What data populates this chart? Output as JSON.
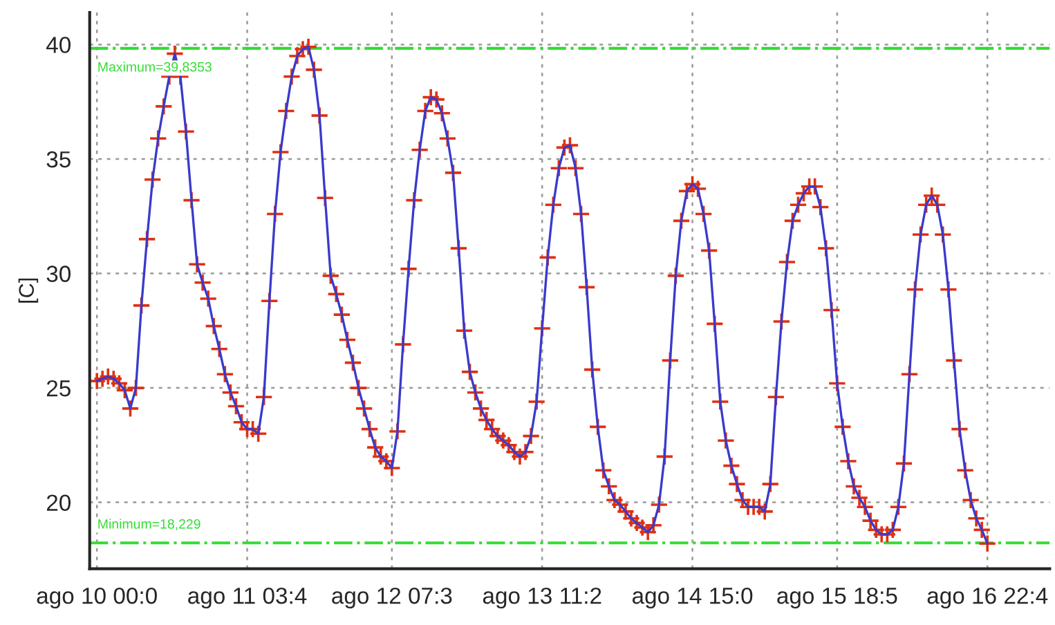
{
  "chart_data": {
    "type": "line",
    "ylabel": "[C]",
    "categories": [
      "ago 10 00:0",
      null,
      null,
      null,
      null,
      null,
      null,
      null,
      null,
      null,
      null,
      null,
      null,
      null,
      null,
      null,
      null,
      null,
      null,
      null,
      null,
      null,
      null,
      null,
      null,
      null,
      null,
      "ago 11 03:4",
      null,
      null,
      null,
      null,
      null,
      null,
      null,
      null,
      null,
      null,
      null,
      null,
      null,
      null,
      null,
      null,
      null,
      null,
      null,
      null,
      null,
      null,
      null,
      null,
      null,
      "ago 12 07:3",
      null,
      null,
      null,
      null,
      null,
      null,
      null,
      null,
      null,
      null,
      null,
      null,
      null,
      null,
      null,
      null,
      null,
      null,
      null,
      null,
      null,
      null,
      null,
      null,
      null,
      null,
      "ago 13 11:2",
      null,
      null,
      null,
      null,
      null,
      null,
      null,
      null,
      null,
      null,
      null,
      null,
      null,
      null,
      null,
      null,
      null,
      null,
      null,
      null,
      null,
      null,
      null,
      null,
      null,
      null,
      "ago 14 15:0",
      null,
      null,
      null,
      null,
      null,
      null,
      null,
      null,
      null,
      null,
      null,
      null,
      null,
      null,
      null,
      null,
      null,
      null,
      null,
      null,
      null,
      null,
      null,
      null,
      null,
      "ago 15 18:5",
      null,
      null,
      null,
      null,
      null,
      null,
      null,
      null,
      null,
      null,
      null,
      null,
      null,
      null,
      null,
      null,
      null,
      null,
      null,
      null,
      null,
      null,
      null,
      null,
      null,
      null,
      "ago 16 22:4"
    ],
    "ylim": [
      17.1,
      41.4
    ],
    "yticks": [
      20,
      25,
      30,
      35,
      40
    ],
    "grid": true,
    "marker": "cross",
    "line_style": "solid",
    "ref_lines": [
      {
        "axis": "y",
        "value": 39.8353,
        "label": "Maximum=39,8353",
        "color": "#33dd33",
        "line_style": "dashdot"
      },
      {
        "axis": "y",
        "value": 18.229,
        "label": "Minimum=18,229",
        "color": "#33dd33",
        "line_style": "dashdot"
      }
    ],
    "series": [
      {
        "color": "#3a3acc",
        "colors": [
          "#e03010",
          "#e03010",
          "#e03010",
          "#e03010",
          "#e03010",
          "#e03010",
          "#e03010",
          "#e03010",
          "#e03010",
          "#e03010",
          "#e03010",
          "#e03010",
          "#e03010",
          "#e03010",
          "#e03010",
          "#e03010",
          "#e03010",
          "#e03010",
          "#e03010",
          "#e03010",
          "#e03010",
          "#e03010",
          "#e03010",
          "#e03010",
          "#e03010",
          "#e03010",
          "#e03010",
          "#e03010",
          "#e03010",
          "#e03010",
          "#e03010",
          "#e03010",
          "#e03010",
          "#e03010",
          "#e03010",
          "#e03010",
          "#e03010",
          "#e03010",
          "#e03010",
          "#e03010",
          "#e03010",
          "#e03010",
          "#e03010",
          "#e03010",
          "#e03010",
          "#e03010",
          "#e03010",
          "#e03010",
          "#e03010",
          "#e03010",
          "#e03010",
          "#e03010",
          "#e03010",
          "#e03010",
          "#e03010",
          "#e03010",
          "#e03010",
          "#e03010",
          "#e03010",
          "#e03010",
          "#e03010",
          "#e03010",
          "#e03010",
          "#e03010",
          "#e03010",
          "#e03010",
          "#e03010",
          "#e03010",
          "#e03010",
          "#e03010",
          "#e03010",
          "#e03010",
          "#e03010",
          "#e03010",
          "#e03010",
          "#e03010",
          "#e03010",
          "#e03010",
          "#e03010",
          "#e03010",
          "#e03010",
          "#e03010",
          "#e03010",
          "#e03010",
          "#e03010",
          "#e03010",
          "#e03010",
          "#e03010",
          "#e03010",
          "#e03010",
          "#e03010",
          "#e03010",
          "#e03010",
          "#e03010",
          "#e03010",
          "#e03010",
          "#e03010",
          "#e03010",
          "#e03010",
          "#e03010",
          "#e03010",
          "#e03010",
          "#e03010",
          "#e03010",
          "#e03010",
          "#e03010",
          "#e03010",
          "#e03010",
          "#e03010",
          "#e03010",
          "#e03010",
          "#e03010",
          "#e03010",
          "#e03010",
          "#e03010",
          "#e03010",
          "#e03010",
          "#e03010",
          "#e03010",
          "#e03010",
          "#e03010",
          "#e03010",
          "#e03010",
          "#e03010",
          "#e03010",
          "#e03010",
          "#e03010",
          "#e03010",
          "#e03010",
          "#e03010",
          "#e03010",
          "#e03010",
          "#e03010",
          "#e03010",
          "#e03010",
          "#e03010",
          "#e03010",
          "#e03010",
          "#e03010",
          "#e03010",
          "#e03010",
          "#e03010",
          "#e03010",
          "#e03010",
          "#e03010",
          "#e03010",
          "#e03010",
          "#e03010",
          "#e03010",
          "#e03010",
          "#e03010",
          "#e03010",
          "#e03010",
          "#e03010",
          "#e03010",
          "#e03010",
          "#e03010",
          "#e03010",
          "#e03010",
          "#e03010",
          "#e03010"
        ],
        "values": [
          25.3,
          25.4,
          25.5,
          25.4,
          25.2,
          24.9,
          24.1,
          25.0,
          28.6,
          31.5,
          34.1,
          35.9,
          37.3,
          38.6,
          39.6,
          38.6,
          36.2,
          33.2,
          30.4,
          29.6,
          28.9,
          27.7,
          26.7,
          25.6,
          24.8,
          24.2,
          23.5,
          23.2,
          23.2,
          23.0,
          24.6,
          28.8,
          32.6,
          35.3,
          37.1,
          38.6,
          39.5,
          39.8,
          39.9,
          38.9,
          36.9,
          33.3,
          29.9,
          29.1,
          28.2,
          27.1,
          26.1,
          25.0,
          24.1,
          23.2,
          22.4,
          22.0,
          21.8,
          21.5,
          23.1,
          26.9,
          30.2,
          33.2,
          35.4,
          37.1,
          37.7,
          37.6,
          37.0,
          35.9,
          34.4,
          31.1,
          27.5,
          25.7,
          24.8,
          24.1,
          23.6,
          23.2,
          22.9,
          22.7,
          22.5,
          22.2,
          22.0,
          22.2,
          22.9,
          24.4,
          27.6,
          30.7,
          33.0,
          34.6,
          35.5,
          35.6,
          34.6,
          32.6,
          29.4,
          25.8,
          23.3,
          21.4,
          20.7,
          20.1,
          19.9,
          19.6,
          19.3,
          19.1,
          18.9,
          18.7,
          19.0,
          19.9,
          22.0,
          26.2,
          29.9,
          32.3,
          33.6,
          33.9,
          33.7,
          32.6,
          31.0,
          27.8,
          24.4,
          22.7,
          21.6,
          20.8,
          20.1,
          19.8,
          19.8,
          19.8,
          19.6,
          20.8,
          24.6,
          27.9,
          30.5,
          32.3,
          33.0,
          33.5,
          33.8,
          33.8,
          32.9,
          31.1,
          28.4,
          25.2,
          23.3,
          21.8,
          20.7,
          20.2,
          19.8,
          19.2,
          18.8,
          18.6,
          18.6,
          18.8,
          19.8,
          21.7,
          25.6,
          29.3,
          31.7,
          33.0,
          33.4,
          33.0,
          31.7,
          29.3,
          26.2,
          23.2,
          21.4,
          20.1,
          19.3,
          18.8,
          18.2
        ]
      }
    ]
  }
}
